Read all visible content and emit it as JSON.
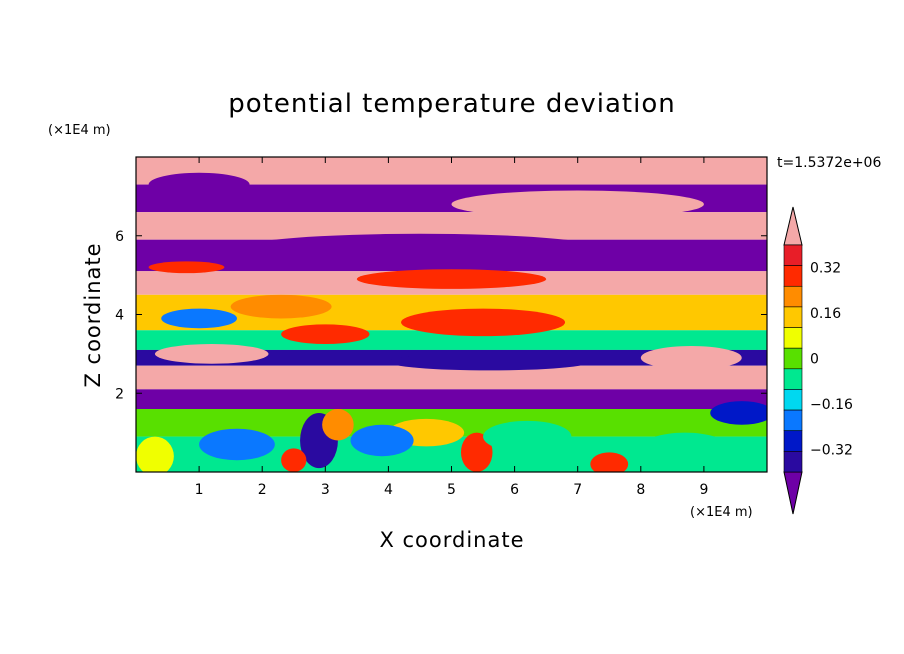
{
  "chart_data": {
    "type": "heatmap",
    "title": "potential temperature deviation",
    "xlabel": "X coordinate",
    "ylabel": "Z coordinate",
    "x_unit": "(×1E4 m)",
    "y_unit": "(×1E4 m)",
    "time_label": "t=1.5372e+06",
    "xlim": [
      0,
      10
    ],
    "ylim": [
      0,
      8
    ],
    "x_ticks": [
      1,
      2,
      3,
      4,
      5,
      6,
      7,
      8,
      9
    ],
    "y_ticks": [
      2,
      4,
      6
    ],
    "colorbar": {
      "levels": [
        -0.48,
        -0.4,
        -0.32,
        -0.24,
        -0.16,
        -0.08,
        0,
        0.08,
        0.16,
        0.24,
        0.32,
        0.4,
        0.48
      ],
      "tick_labels": [
        "0.32",
        "0.16",
        "0",
        "−0.16",
        "−0.32"
      ],
      "tick_values": [
        0.32,
        0.16,
        0,
        -0.16,
        -0.32
      ],
      "colors": [
        "#6e00a6",
        "#2a0aa0",
        "#0018c8",
        "#0a78ff",
        "#00d8f0",
        "#00e890",
        "#58e000",
        "#f0ff00",
        "#ffc800",
        "#ff8c00",
        "#ff2a00",
        "#e81e28",
        "#f4a8a8"
      ]
    },
    "bands": [
      {
        "y0": 7.3,
        "y1": 8.0,
        "value": 0.5
      },
      {
        "y0": 6.6,
        "y1": 7.3,
        "value": -0.5
      },
      {
        "y0": 5.9,
        "y1": 6.6,
        "value": 0.5
      },
      {
        "y0": 5.1,
        "y1": 5.9,
        "value": -0.5
      },
      {
        "y0": 4.5,
        "y1": 5.1,
        "value": 0.45
      },
      {
        "y0": 3.6,
        "y1": 4.5,
        "value": 0.12
      },
      {
        "y0": 3.1,
        "y1": 3.6,
        "value": -0.05
      },
      {
        "y0": 2.7,
        "y1": 3.1,
        "value": -0.4
      },
      {
        "y0": 2.1,
        "y1": 2.7,
        "value": 0.5
      },
      {
        "y0": 1.6,
        "y1": 2.1,
        "value": -0.45
      },
      {
        "y0": 0.9,
        "y1": 1.6,
        "value": 0.0
      },
      {
        "y0": 0.0,
        "y1": 0.9,
        "value": -0.12
      }
    ],
    "blobs": [
      {
        "x": 5.5,
        "z": 3.8,
        "rx": 1.3,
        "rz": 0.35,
        "value": 0.3
      },
      {
        "x": 3.0,
        "z": 3.5,
        "rx": 0.7,
        "rz": 0.25,
        "value": 0.3
      },
      {
        "x": 2.3,
        "z": 4.2,
        "rx": 0.8,
        "rz": 0.3,
        "value": 0.2
      },
      {
        "x": 7.6,
        "z": 4.1,
        "rx": 1.0,
        "rz": 0.3,
        "value": 0.18
      },
      {
        "x": 1.0,
        "z": 3.9,
        "rx": 0.6,
        "rz": 0.25,
        "value": -0.2
      },
      {
        "x": 5.0,
        "z": 4.9,
        "rx": 1.5,
        "rz": 0.25,
        "value": 0.3
      },
      {
        "x": 1.2,
        "z": 3.0,
        "rx": 0.9,
        "rz": 0.25,
        "value": 0.5
      },
      {
        "x": 8.8,
        "z": 2.9,
        "rx": 0.8,
        "rz": 0.3,
        "value": 0.5
      },
      {
        "x": 5.6,
        "z": 2.8,
        "rx": 1.6,
        "rz": 0.22,
        "value": -0.4
      },
      {
        "x": 2.9,
        "z": 0.8,
        "rx": 0.3,
        "rz": 0.7,
        "value": -0.4
      },
      {
        "x": 3.2,
        "z": 1.2,
        "rx": 0.25,
        "rz": 0.4,
        "value": 0.2
      },
      {
        "x": 5.4,
        "z": 0.5,
        "rx": 0.25,
        "rz": 0.5,
        "value": 0.35
      },
      {
        "x": 2.5,
        "z": 0.3,
        "rx": 0.2,
        "rz": 0.3,
        "value": 0.35
      },
      {
        "x": 7.5,
        "z": 0.2,
        "rx": 0.3,
        "rz": 0.3,
        "value": 0.35
      },
      {
        "x": 4.6,
        "z": 1.0,
        "rx": 0.6,
        "rz": 0.35,
        "value": 0.15
      },
      {
        "x": 1.6,
        "z": 0.7,
        "rx": 0.6,
        "rz": 0.4,
        "value": -0.2
      },
      {
        "x": 6.2,
        "z": 0.9,
        "rx": 0.7,
        "rz": 0.4,
        "value": -0.1
      },
      {
        "x": 8.7,
        "z": 0.6,
        "rx": 0.7,
        "rz": 0.4,
        "value": -0.08
      },
      {
        "x": 3.9,
        "z": 0.8,
        "rx": 0.5,
        "rz": 0.4,
        "value": -0.28
      },
      {
        "x": 0.3,
        "z": 0.4,
        "rx": 0.3,
        "rz": 0.5,
        "value": 0.1
      },
      {
        "x": 9.6,
        "z": 1.5,
        "rx": 0.5,
        "rz": 0.3,
        "value": -0.3
      },
      {
        "x": 7.0,
        "z": 6.8,
        "rx": 2.0,
        "rz": 0.35,
        "value": 0.5
      },
      {
        "x": 1.0,
        "z": 7.3,
        "rx": 0.8,
        "rz": 0.3,
        "value": -0.5
      },
      {
        "x": 4.5,
        "z": 5.7,
        "rx": 2.8,
        "rz": 0.35,
        "value": -0.5
      },
      {
        "x": 0.8,
        "z": 5.2,
        "rx": 0.6,
        "rz": 0.15,
        "value": 0.35
      }
    ]
  }
}
